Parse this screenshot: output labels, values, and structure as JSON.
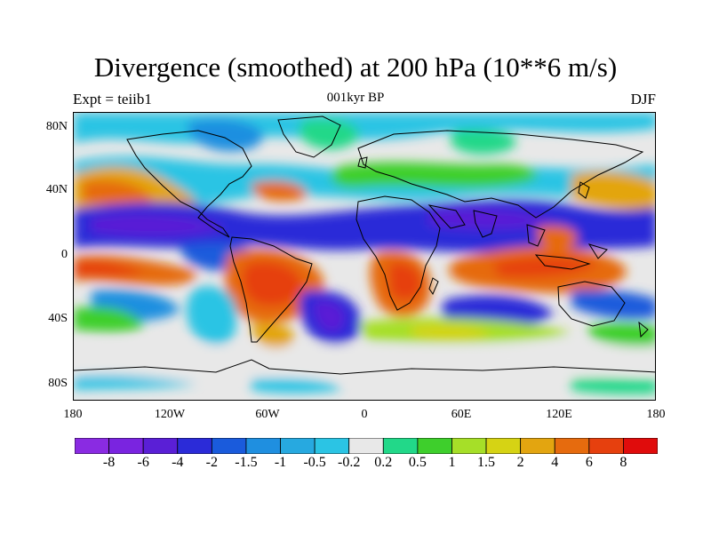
{
  "title": "Divergence (smoothed) at 200 hPa (10**6 m/s)",
  "subtitle_left": "Expt = teiib1",
  "subtitle_center": "001kyr BP",
  "subtitle_right": "DJF",
  "lat_labels": [
    "80N",
    "40N",
    "0",
    "40S",
    "80S"
  ],
  "lon_labels": [
    "180",
    "120W",
    "60W",
    "0",
    "60E",
    "120E",
    "180"
  ],
  "colorbar": {
    "colors": [
      "#8a2be2",
      "#7a24e0",
      "#5a1fd6",
      "#2b2bd8",
      "#1a5bdc",
      "#1f8fe0",
      "#27a9e0",
      "#2bc4e4",
      "#e8e8e8",
      "#22d889",
      "#3ecf2c",
      "#a6df28",
      "#d6d314",
      "#e3a510",
      "#e66b0e",
      "#e6400e",
      "#e00c0c"
    ],
    "labels": [
      "-8",
      "-6",
      "-4",
      "-2",
      "-1.5",
      "-1",
      "-0.5",
      "-0.2",
      "0.2",
      "0.5",
      "1",
      "1.5",
      "2",
      "4",
      "6",
      "8"
    ]
  }
}
